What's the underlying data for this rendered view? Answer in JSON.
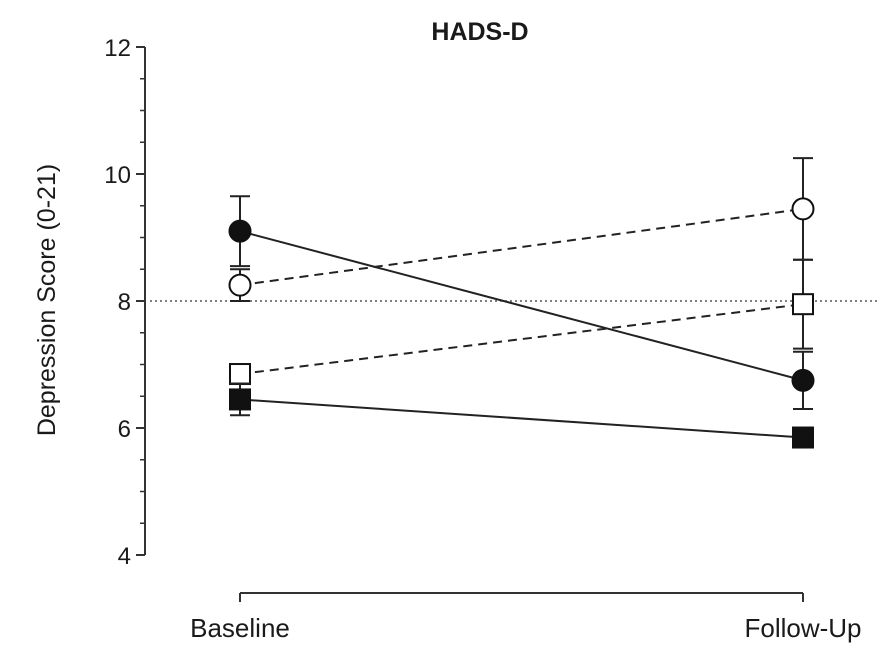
{
  "chart_data": {
    "type": "line",
    "title": "HADS-D",
    "xlabel": "",
    "ylabel": "Depression Score (0-21)",
    "categories": [
      "Baseline",
      "Follow-Up"
    ],
    "ylim": [
      4,
      12
    ],
    "yticks": [
      "4",
      "6",
      "8",
      "10",
      "12"
    ],
    "reference_line": 8,
    "series": [
      {
        "marker": "filled-circle",
        "line": "solid",
        "values": [
          9.1,
          6.75
        ],
        "err": [
          0.55,
          0.45
        ]
      },
      {
        "marker": "open-circle",
        "line": "dashed",
        "values": [
          8.25,
          9.45
        ],
        "err": [
          0.25,
          0.8
        ]
      },
      {
        "marker": "open-square",
        "line": "dashed",
        "values": [
          6.85,
          7.95
        ],
        "err": [
          0.15,
          0.7
        ]
      },
      {
        "marker": "filled-square",
        "line": "solid",
        "values": [
          6.45,
          5.85
        ],
        "err": [
          0.25,
          0.15
        ]
      }
    ],
    "grid": false,
    "legend": "none"
  }
}
